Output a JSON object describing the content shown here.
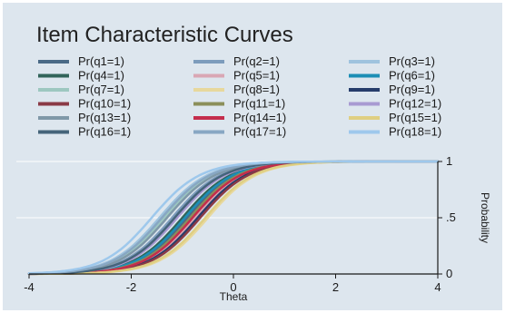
{
  "chart_data": {
    "type": "line",
    "title": "Item Characteristic Curves",
    "xlabel": "Theta",
    "ylabel": "Probability",
    "xlim": [
      -4,
      4
    ],
    "ylim": [
      0,
      1
    ],
    "x_ticks": [
      "-4",
      "-2",
      "0",
      "2",
      "4"
    ],
    "y_ticks": [
      "0",
      ".5",
      "1"
    ],
    "grid": "horizontal",
    "legend_position": "top",
    "background": "#dde6ee",
    "series": [
      {
        "name": "Pr(q1=1)",
        "color": "#4a6a86",
        "a": 2.1,
        "b": -0.9
      },
      {
        "name": "Pr(q2=1)",
        "color": "#7d9cbc",
        "a": 2.1,
        "b": -1.2
      },
      {
        "name": "Pr(q3=1)",
        "color": "#9fc3de",
        "a": 2.1,
        "b": -1.45
      },
      {
        "name": "Pr(q4=1)",
        "color": "#31645a",
        "a": 2.1,
        "b": -1.0
      },
      {
        "name": "Pr(q5=1)",
        "color": "#d9a7b4",
        "a": 2.1,
        "b": -0.75
      },
      {
        "name": "Pr(q6=1)",
        "color": "#1c8eb5",
        "a": 2.1,
        "b": -0.95
      },
      {
        "name": "Pr(q7=1)",
        "color": "#9dc7c0",
        "a": 2.1,
        "b": -1.35
      },
      {
        "name": "Pr(q8=1)",
        "color": "#e7d89d",
        "a": 2.1,
        "b": -0.5
      },
      {
        "name": "Pr(q9=1)",
        "color": "#263d6b",
        "a": 2.1,
        "b": -0.7
      },
      {
        "name": "Pr(q10=1)",
        "color": "#8a3a46",
        "a": 2.1,
        "b": -0.65
      },
      {
        "name": "Pr(q11=1)",
        "color": "#8b8f5a",
        "a": 2.1,
        "b": -0.85
      },
      {
        "name": "Pr(q12=1)",
        "color": "#a89ad2",
        "a": 2.1,
        "b": -1.1
      },
      {
        "name": "Pr(q13=1)",
        "color": "#7f98a8",
        "a": 2.1,
        "b": -1.3
      },
      {
        "name": "Pr(q14=1)",
        "color": "#c42d4c",
        "a": 2.1,
        "b": -0.8
      },
      {
        "name": "Pr(q15=1)",
        "color": "#dfcf82",
        "a": 2.1,
        "b": -0.55
      },
      {
        "name": "Pr(q16=1)",
        "color": "#45647a",
        "a": 2.1,
        "b": -1.15
      },
      {
        "name": "Pr(q17=1)",
        "color": "#88a7c3",
        "a": 2.1,
        "b": -1.4
      },
      {
        "name": "Pr(q18=1)",
        "color": "#9ec8ec",
        "a": 2.1,
        "b": -1.6
      }
    ]
  }
}
